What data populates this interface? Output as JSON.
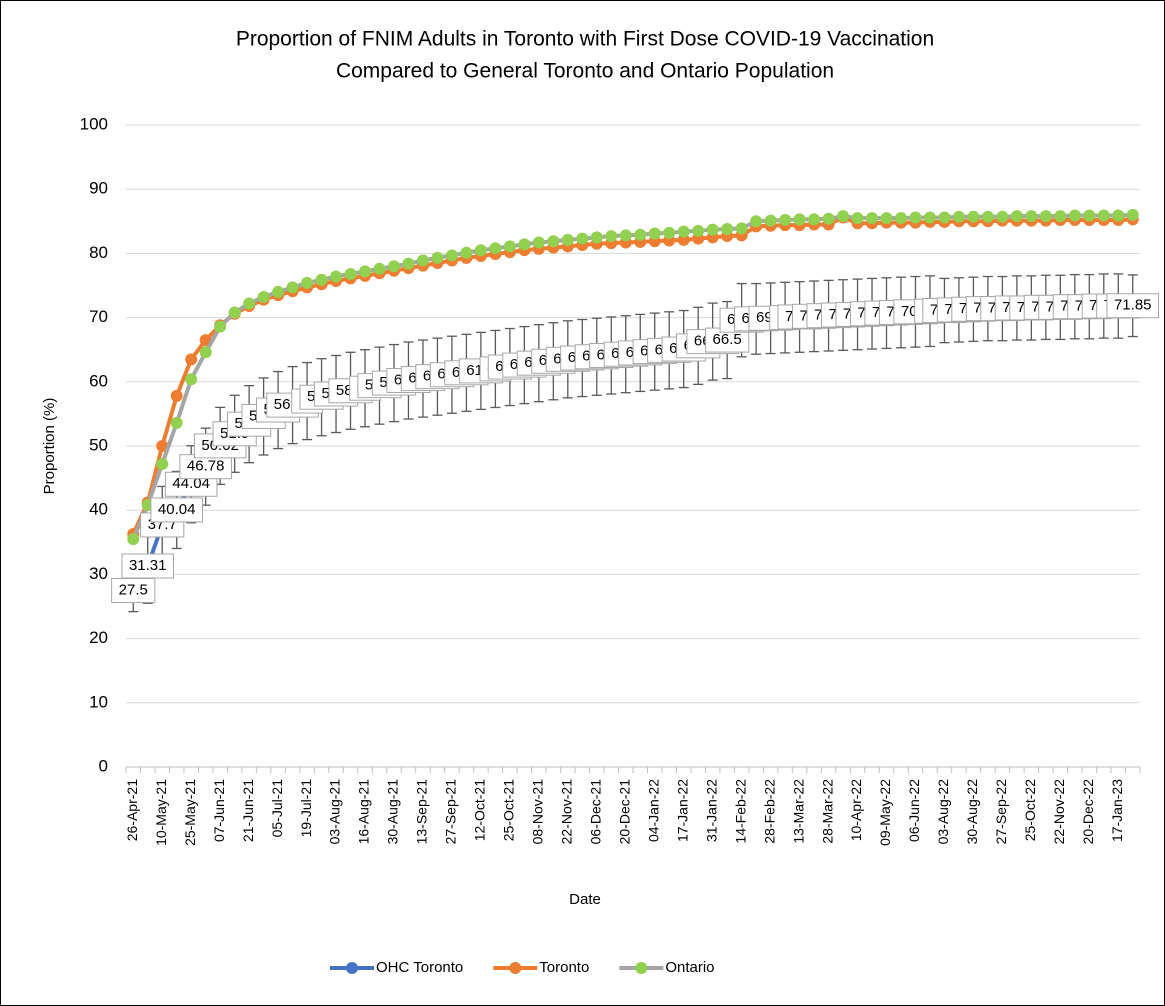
{
  "chart_data": {
    "type": "line",
    "title": [
      "Proportion of FNIM Adults in Toronto with First Dose COVID-19 Vaccination",
      "Compared to General Toronto and Ontario Population"
    ],
    "xlabel": "Date",
    "ylabel": "Proportion (%)",
    "ylim": [
      0,
      100
    ],
    "yticks": [
      0,
      10,
      20,
      30,
      40,
      50,
      60,
      70,
      80,
      90,
      100
    ],
    "grid": true,
    "legend": "bottom",
    "categories": [
      "26-Apr-21",
      null,
      "10-May-21",
      null,
      "25-May-21",
      null,
      "07-Jun-21",
      null,
      "21-Jun-21",
      null,
      "05-Jul-21",
      null,
      "19-Jul-21",
      null,
      "03-Aug-21",
      null,
      "16-Aug-21",
      null,
      "30-Aug-21",
      null,
      "13-Sep-21",
      null,
      "27-Sep-21",
      null,
      "12-Oct-21",
      null,
      "25-Oct-21",
      null,
      "08-Nov-21",
      null,
      "22-Nov-21",
      null,
      "06-Dec-21",
      null,
      "20-Dec-21",
      null,
      "04-Jan-22",
      null,
      "17-Jan-22",
      null,
      "31-Jan-22",
      null,
      "14-Feb-22",
      null,
      "28-Feb-22",
      null,
      "13-Mar-22",
      null,
      "28-Mar-22",
      null,
      "10-Apr-22",
      null,
      "09-May-22",
      null,
      "06-Jun-22",
      null,
      "03-Aug-22",
      null,
      "30-Aug-22",
      null,
      "27-Sep-22",
      null,
      "25-Oct-22",
      null,
      "22-Nov-22",
      null,
      "20-Dec-22",
      null,
      "17-Jan-23",
      null
    ],
    "series": [
      {
        "name": "OHC Toronto",
        "color": "#4472C4",
        "marker_color": "#4472C4",
        "data_labels": true,
        "values": [
          27.5,
          31.31,
          37.7,
          40.04,
          44.04,
          46.78,
          50.02,
          51.9,
          53.4,
          54.6,
          55.6,
          56.37,
          57.0,
          57.6,
          58.1,
          58.6,
          59.0,
          59.4,
          59.8,
          60.2,
          60.5,
          60.8,
          61.1,
          61.4,
          61.7,
          62.0,
          62.3,
          62.6,
          62.9,
          63.2,
          63.5,
          63.7,
          63.9,
          64.1,
          64.3,
          64.5,
          64.7,
          64.9,
          65.1,
          65.6,
          66.26,
          66.5,
          69.6,
          69.8,
          69.9,
          70.0,
          70.1,
          70.2,
          70.3,
          70.4,
          70.5,
          70.6,
          70.7,
          70.8,
          70.9,
          71.0,
          71.1,
          71.2,
          71.3,
          71.4,
          71.4,
          71.5,
          71.5,
          71.6,
          71.6,
          71.7,
          71.7,
          71.8,
          71.8,
          71.85
        ],
        "errors": [
          3.3,
          5.8,
          6,
          6,
          6,
          6,
          6,
          6,
          6,
          6,
          6,
          6,
          6,
          6,
          6,
          6,
          6,
          6,
          6,
          6,
          6,
          6,
          6,
          6,
          6,
          6,
          6,
          6,
          6,
          6,
          6,
          6,
          6,
          6,
          6,
          6,
          6,
          6,
          6,
          6,
          6,
          6,
          5.7,
          5.5,
          5.5,
          5.5,
          5.5,
          5.5,
          5.5,
          5.5,
          5.5,
          5.5,
          5.5,
          5.5,
          5.5,
          5.5,
          5,
          5,
          5,
          5,
          5,
          5,
          5,
          5,
          5,
          5,
          5,
          5,
          5,
          4.8
        ]
      },
      {
        "name": "Toronto",
        "color": "#ED7D31",
        "marker_color": "#ED7D31",
        "values": [
          36.3,
          41.2,
          50.0,
          57.8,
          63.5,
          66.5,
          68.8,
          70.6,
          71.8,
          72.8,
          73.5,
          74.1,
          74.7,
          75.2,
          75.7,
          76.1,
          76.5,
          76.9,
          77.3,
          77.7,
          78.1,
          78.5,
          78.9,
          79.3,
          79.6,
          79.9,
          80.2,
          80.5,
          80.7,
          80.9,
          81.1,
          81.3,
          81.5,
          81.6,
          81.7,
          81.8,
          81.9,
          82.0,
          82.1,
          82.3,
          82.5,
          82.7,
          82.8,
          84.2,
          84.3,
          84.4,
          84.4,
          84.5,
          84.5,
          85.6,
          84.7,
          84.7,
          84.8,
          84.8,
          84.8,
          84.9,
          84.9,
          85.0,
          85.0,
          85.0,
          85.1,
          85.1,
          85.1,
          85.1,
          85.2,
          85.2,
          85.2,
          85.2,
          85.2,
          85.3
        ]
      },
      {
        "name": "Ontario",
        "color": "#A5A5A5",
        "marker_color": "#92D050",
        "values": [
          35.5,
          40.8,
          47.2,
          53.6,
          60.4,
          64.6,
          68.6,
          70.8,
          72.2,
          73.2,
          74.0,
          74.7,
          75.4,
          75.9,
          76.4,
          76.8,
          77.2,
          77.6,
          78.0,
          78.4,
          78.9,
          79.3,
          79.7,
          80.1,
          80.5,
          80.8,
          81.1,
          81.4,
          81.7,
          81.9,
          82.1,
          82.3,
          82.5,
          82.7,
          82.8,
          82.9,
          83.1,
          83.2,
          83.4,
          83.5,
          83.7,
          83.8,
          83.9,
          85.0,
          85.1,
          85.2,
          85.3,
          85.3,
          85.4,
          85.8,
          85.5,
          85.5,
          85.5,
          85.5,
          85.6,
          85.6,
          85.6,
          85.7,
          85.7,
          85.7,
          85.7,
          85.8,
          85.8,
          85.8,
          85.8,
          85.9,
          85.9,
          85.9,
          85.9,
          86.0
        ]
      }
    ]
  }
}
